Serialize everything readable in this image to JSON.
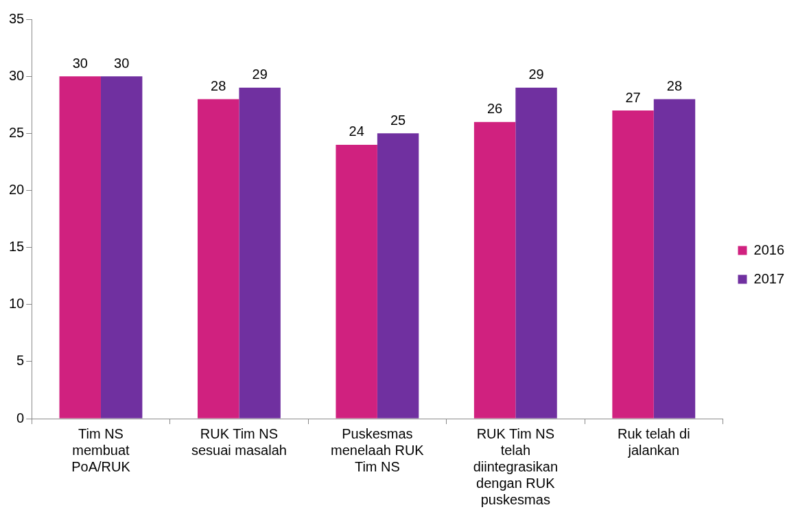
{
  "chart_data": {
    "type": "bar",
    "categories": [
      "Tim NS membuat PoA/RUK",
      "RUK Tim NS sesuai masalah",
      "Puskesmas menelaah RUK Tim NS",
      "RUK Tim NS telah diintegrasikan dengan RUK puskesmas",
      "Ruk telah di jalankan"
    ],
    "series": [
      {
        "name": "2016",
        "color": "#d0217f",
        "values": [
          30,
          28,
          24,
          26,
          27
        ]
      },
      {
        "name": "2017",
        "color": "#7030a0",
        "values": [
          30,
          29,
          25,
          29,
          28
        ]
      }
    ],
    "ylim": [
      0,
      35
    ],
    "yticks": [
      0,
      5,
      10,
      15,
      20,
      25,
      30,
      35
    ],
    "grid": false,
    "legend": "right",
    "data_labels": true
  }
}
